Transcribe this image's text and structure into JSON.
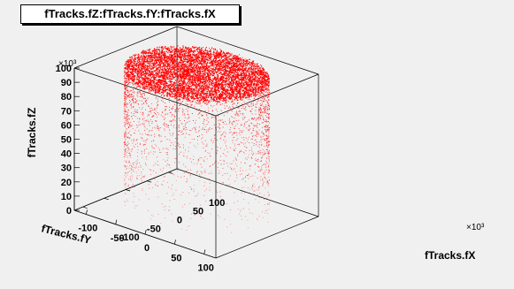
{
  "chart_data": {
    "type": "scatter",
    "title": "fTracks.fZ:fTracks.fY:fTracks.fX",
    "xlabel": "fTracks.fX",
    "ylabel": "fTracks.fY",
    "zlabel": "fTracks.fZ",
    "x_exponent": "×10³",
    "z_exponent": "×10³",
    "xlim": [
      -120,
      120
    ],
    "ylim": [
      -120,
      120
    ],
    "zlim": [
      0,
      100000
    ],
    "x_ticks": [
      "-100",
      "-50",
      "0",
      "50",
      "100"
    ],
    "y_ticks": [
      "-100",
      "-50",
      "0",
      "50",
      "100"
    ],
    "z_ticks": [
      "0",
      "10",
      "20",
      "30",
      "40",
      "50",
      "60",
      "70",
      "80",
      "90",
      "100"
    ],
    "marker_color": "#ff0000",
    "description_shape": "cylinder",
    "cylinder_radius": 100,
    "cylinder_z_range": [
      0,
      100000
    ],
    "cap_z": 100000
  }
}
